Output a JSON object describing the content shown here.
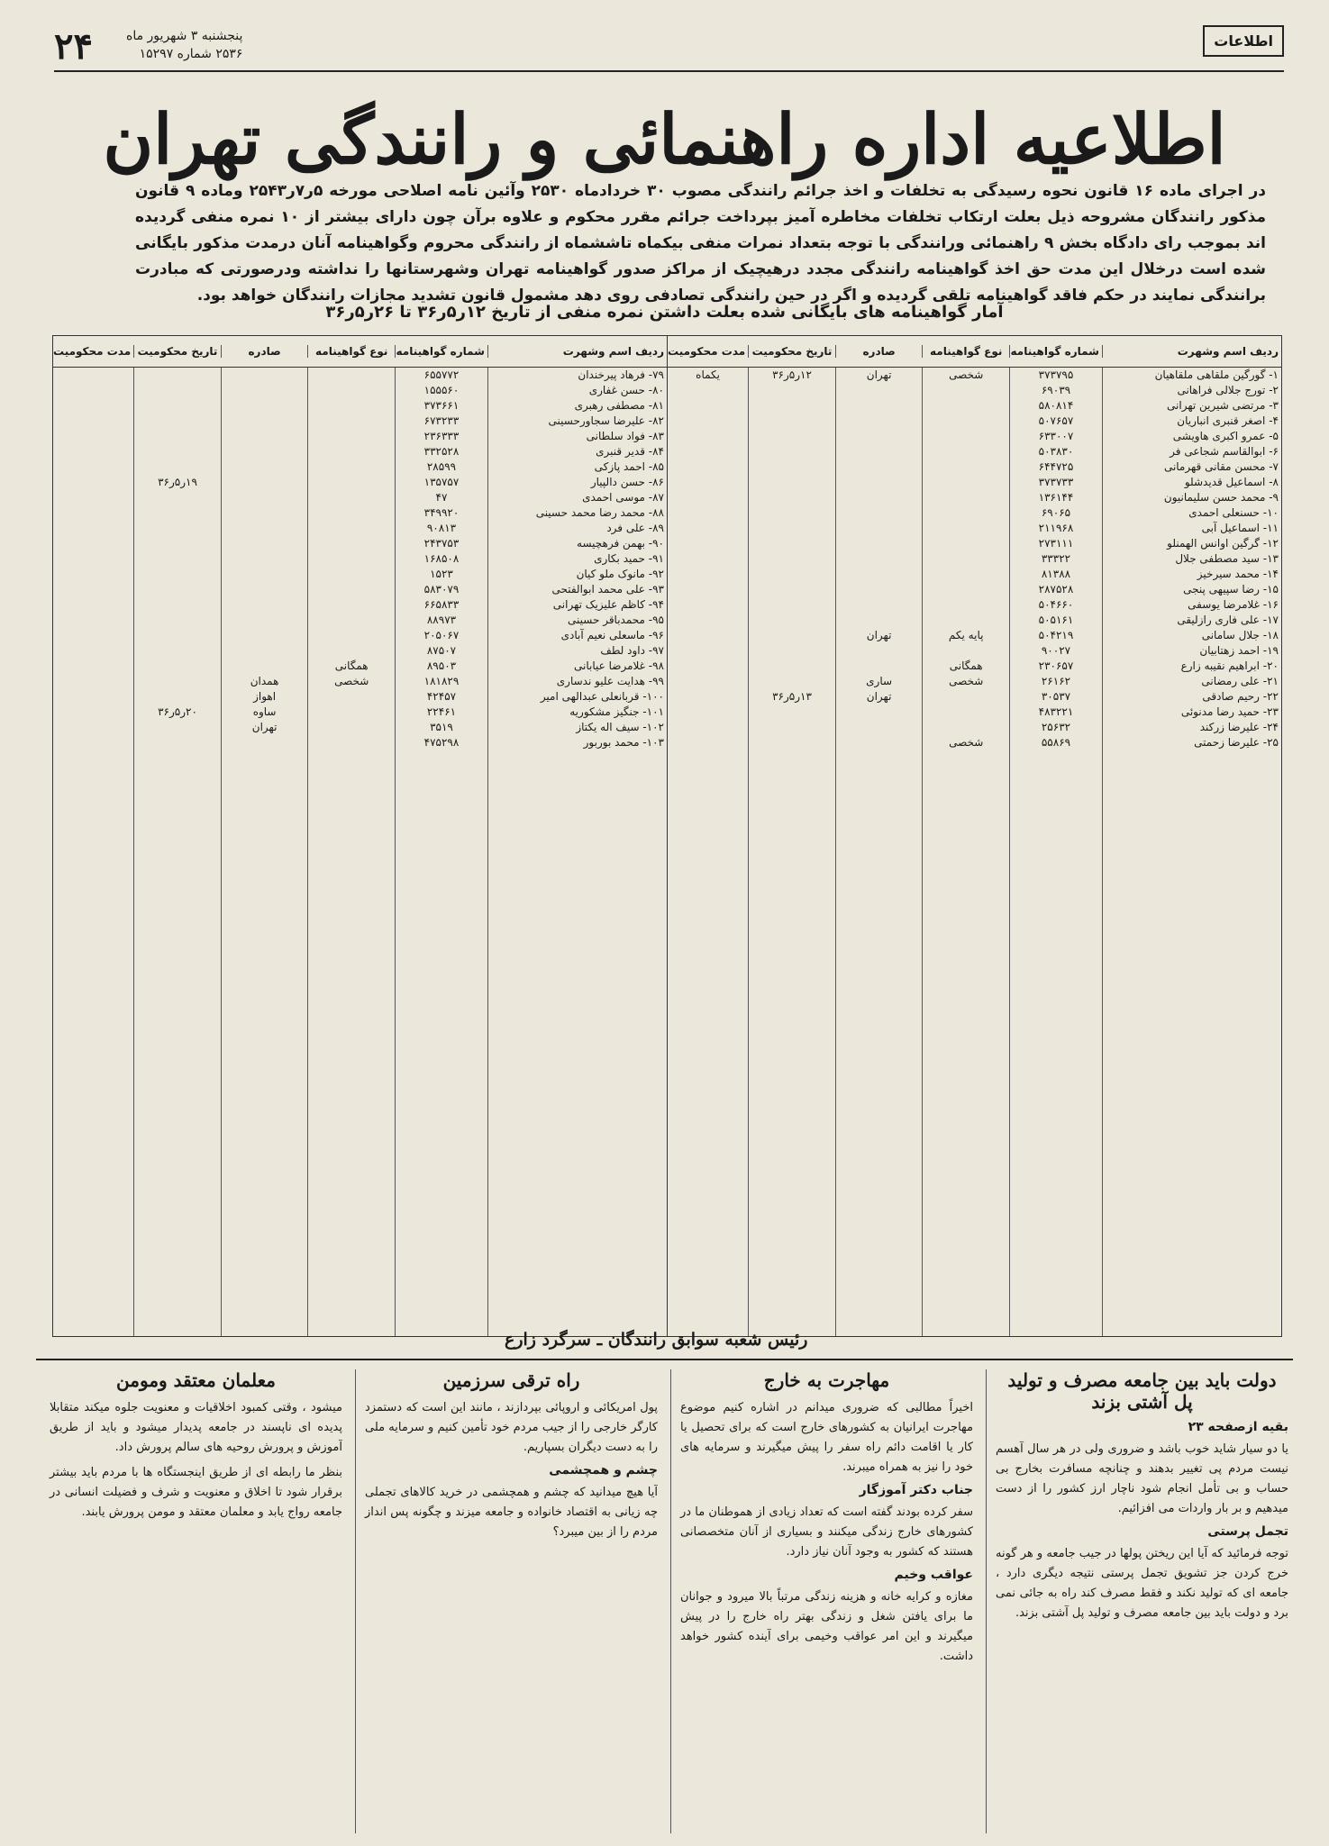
{
  "header": {
    "page_number": "۲۴",
    "date_line_1": "پنجشنبه ۳ شهریور ماه",
    "date_line_2": "۲۵۳۶ شماره ۱۵۲۹۷",
    "logo": "اطلاعات"
  },
  "notice": {
    "title": "اطلاعیه اداره راهنمائی و رانندگی تهران",
    "intro": "در اجرای ماده ۱۶ قانون نحوه رسیدگی به تخلفات و اخذ جرائم رانندگی مصوب ۳۰ خردادماه ۲۵۳۰ وآئین نامه اصلاحی مورخه ۵ر۷ر۲۵۴۳ وماده ۹ قانون مذکور رانندگان مشروحه ذیل بعلت ارتکاب تخلفات مخاطره آمیز بپرداخت جرائم مقرر محکوم و علاوه برآن چون دارای بیشتر از ۱۰ نمره منفی گردیده اند بموجب رای دادگاه بخش ۹ راهنمائی ورانندگی با توجه بتعداد نمرات منفی بیکماه تاششماه از رانندگی محروم وگواهینامه آنان درمدت مذکور بایگانی شده است درخلال این مدت حق اخذ گواهینامه رانندگی مجدد درهیچیک از مراکز صدور گواهینامه تهران وشهرستانها را نداشته ودرصورتی که مبادرت برانندگی نمایند در حکم فاقد گواهینامه تلقی گردیده و اگر در حین رانندگی تصادفی روی دهد مشمول قانون تشدید مجازات رانندگان خواهد بود.",
    "table_title": "آمار گواهینامه های بایگانی شده بعلت داشتن نمره منفی از تاریخ ۱۲ر۵ر۳۶ تا ۲۶ر۵ر۳۶",
    "signature": "رئیس شعبه سوابق رانندگان ـ سرگرد زارع"
  },
  "table": {
    "columns": [
      "ردیف اسم وشهرت",
      "شماره گواهینامه",
      "نوع گواهینامه",
      "صادره",
      "تاریخ محکومیت",
      "مدت محکومیت"
    ],
    "right_rows": [
      [
        "۱- گورگین ملقاهی ملقاهیان",
        "۳۷۳۷۹۵",
        "شخصی",
        "تهران",
        "۱۲ر۵ر۳۶",
        "یکماه"
      ],
      [
        "۲- تورج جلالی فراهانی",
        "۶۹۰۳۹",
        null,
        null,
        null,
        null
      ],
      [
        "۳- مرتضی شیرین تهرانی",
        "۵۸۰۸۱۴",
        null,
        null,
        null,
        null
      ],
      [
        "۴- اصغر قنبری انباریان",
        "۵۰۷۶۵۷",
        null,
        null,
        null,
        null
      ],
      [
        "۵- عمرو اکبری هاویشی",
        "۶۳۳۰۰۷",
        null,
        null,
        null,
        null
      ],
      [
        "۶- ابوالقاسم شجاعی فر",
        "۵۰۳۸۳۰",
        null,
        null,
        null,
        null
      ],
      [
        "۷- محسن مقانی قهرمانی",
        "۶۴۴۷۲۵",
        null,
        null,
        null,
        null
      ],
      [
        "۸- اسماعیل قدیدشلو",
        "۳۷۳۷۳۳",
        null,
        null,
        null,
        null
      ],
      [
        "۹- محمد حسن سلیمانیون",
        "۱۳۶۱۴۴",
        null,
        null,
        null,
        null
      ],
      [
        "۱۰- حسنعلی احمدی",
        "۶۹۰۶۵",
        null,
        null,
        null,
        null
      ],
      [
        "۱۱- اسماعیل آبی",
        "۲۱۱۹۶۸",
        null,
        null,
        null,
        null
      ],
      [
        "۱۲- گرگین اوانس الهمنلو",
        "۲۷۳۱۱۱",
        null,
        null,
        null,
        null
      ],
      [
        "۱۳- سید مصطفی جلال",
        "۳۳۳۲۲",
        null,
        null,
        null,
        null
      ],
      [
        "۱۴- محمد سیرخیز",
        "۸۱۳۸۸",
        null,
        null,
        null,
        null
      ],
      [
        "۱۵- رضا سپیهی پنجی",
        "۲۸۷۵۲۸",
        null,
        null,
        null,
        null
      ],
      [
        "۱۶- غلامرضا یوسفی",
        "۵۰۴۶۶۰",
        null,
        null,
        null,
        null
      ],
      [
        "۱۷- علی فاری رازلیقی",
        "۵۰۵۱۶۱",
        null,
        null,
        null,
        null
      ],
      [
        "۱۸- جلال سامانی",
        "۵۰۴۲۱۹",
        "پایه یکم",
        "تهران",
        null,
        null
      ],
      [
        "۱۹- احمد زهتابیان",
        "۹۰۰۲۷",
        null,
        null,
        null,
        null
      ],
      [
        "۲۰- ابراهیم نقیبه زارع",
        "۲۳۰۶۵۷",
        "همگانی",
        null,
        null,
        null
      ],
      [
        "۲۱- علی رمضانی",
        "۲۶۱۶۲",
        "شخصی",
        "ساری",
        null,
        null
      ],
      [
        "۲۲- رحیم صادقی",
        "۳۰۵۳۷",
        null,
        "تهران",
        "۱۳ر۵ر۳۶",
        null
      ],
      [
        "۲۳- حمید رضا مدنوئی",
        "۴۸۳۲۲۱",
        null,
        null,
        null,
        null
      ],
      [
        "۲۴- علیرضا زرکند",
        "۲۵۶۳۲",
        null,
        null,
        null,
        null
      ],
      [
        "۲۵- علیرضا زحمتی",
        "۵۵۸۶۹",
        "شخصی",
        null,
        null,
        null
      ]
    ],
    "left_rows": [
      [
        "۷۹- فرهاد پیرخندان",
        "۶۵۵۷۷۲",
        null,
        null,
        null,
        null
      ],
      [
        "۸۰- حسن غفاری",
        "۱۵۵۵۶۰",
        null,
        null,
        null,
        null
      ],
      [
        "۸۱- مصطفی رهبری",
        "۳۷۳۶۶۱",
        null,
        null,
        null,
        null
      ],
      [
        "۸۲- علیرضا سجاورحسینی",
        "۶۷۳۲۳۳",
        null,
        null,
        null,
        null
      ],
      [
        "۸۳- فواد سلطانی",
        "۲۳۶۳۳۳",
        null,
        null,
        null,
        null
      ],
      [
        "۸۴- قدیر قنبری",
        "۳۳۲۵۲۸",
        null,
        null,
        null,
        null
      ],
      [
        "۸۵- احمد پازکی",
        "۲۸۵۹۹",
        null,
        null,
        null,
        null
      ],
      [
        "۸۶- حسن دالپیار",
        "۱۳۵۷۵۷",
        null,
        null,
        "۱۹ر۵ر۳۶",
        null
      ],
      [
        "۸۷- موسی احمدی",
        "۴۷",
        null,
        null,
        null,
        null
      ],
      [
        "۸۸- محمد رضا محمد حسینی",
        "۳۴۹۹۲۰",
        null,
        null,
        null,
        null
      ],
      [
        "۸۹- علی فرد",
        "۹۰۸۱۳",
        null,
        null,
        null,
        null
      ],
      [
        "۹۰- بهمن فرهچیسه",
        "۲۴۳۷۵۳",
        null,
        null,
        null,
        null
      ],
      [
        "۹۱- حمید بکاری",
        "۱۶۸۵۰۸",
        null,
        null,
        null,
        null
      ],
      [
        "۹۲- مانوک ملو کیان",
        "۱۵۲۳",
        null,
        null,
        null,
        null
      ],
      [
        "۹۳- علی محمد ابوالفتحی",
        "۵۸۳۰۷۹",
        null,
        null,
        null,
        null
      ],
      [
        "۹۴- کاظم علیزیک تهرانی",
        "۶۶۵۸۳۳",
        null,
        null,
        null,
        null
      ],
      [
        "۹۵- محمدباقر حسینی",
        "۸۸۹۷۳",
        null,
        null,
        null,
        null
      ],
      [
        "۹۶- ماسعلی نعیم آبادی",
        "۲۰۵۰۶۷",
        null,
        null,
        null,
        null
      ],
      [
        "۹۷- داود لطف",
        "۸۷۵۰۷",
        null,
        null,
        null,
        null
      ],
      [
        "۹۸- غلامرضا عیابانی",
        "۸۹۵۰۳",
        "همگانی",
        null,
        null,
        null
      ],
      [
        "۹۹- هدایت علیو ندساری",
        "۱۸۱۸۲۹",
        "شخصی",
        "همدان",
        null,
        null
      ],
      [
        "۱۰۰- قربانعلی عبدالهی امیر",
        "۴۲۴۵۷",
        null,
        "اهواز",
        null,
        null
      ],
      [
        "۱۰۱- جنگیز مشکوریه",
        "۲۲۴۶۱",
        null,
        "ساوه",
        "۲۰ر۵ر۳۶",
        null
      ],
      [
        "۱۰۲- سیف اله یکتاز",
        "۳۵۱۹",
        null,
        "تهران",
        null,
        null
      ],
      [
        "۱۰۳- محمد بوربور",
        "۴۷۵۲۹۸",
        null,
        null,
        null,
        null
      ]
    ]
  },
  "articles": [
    {
      "title": "دولت باید بین جامعه مصرف و تولید پل آشتی بزند",
      "blocks": [
        {
          "h": "بقیه ازصفحه ۲۳"
        },
        {
          "p": "یا دو سیار شاید خوب باشد و ضروری ولی در هر سال آهسم نیست مردم پی تغییر بدهند و چنانچه مسافرت بخارج بی حساب و بی تأمل انجام شود ناچار ارز کشور را از دست میدهیم و بر بار واردات می افزائیم."
        },
        {
          "h": "تجمل پرستی"
        },
        {
          "p": "توجه فرمائید که آیا این ریختن پولها در جیب جامعه و هر گونه خرج کردن جز تشویق تجمل پرستی نتیجه دیگری دارد ، جامعه ای که تولید نکند و فقط مصرف کند راه به جائی نمی برد و دولت باید بین جامعه مصرف و تولید پل آشتی بزند."
        }
      ]
    },
    {
      "title": "مهاجرت به خارج",
      "blocks": [
        {
          "p": "اخیراً مطالبی که ضروری میدانم در اشاره کنیم موضوع مهاجرت ایرانیان به کشورهای خارج است که برای تحصیل یا کار یا اقامت دائم راه سفر را پیش میگیرند و سرمایه های خود را نیز به همراه میبرند."
        },
        {
          "h": "جناب دکتر آموزگار"
        },
        {
          "p": "سفر کرده بودند گفته است که تعداد زیادی از هموطنان ما در کشورهای خارج زندگی میکنند و بسیاری از آنان متخصصانی هستند که کشور به وجود آنان نیاز دارد."
        },
        {
          "h": "عواقب وخیم"
        },
        {
          "p": "مغازه و کرایه خانه و هزینه زندگی مرتباً بالا میرود و جوانان ما برای یافتن شغل و زندگی بهتر راه خارج را در پیش میگیرند و این امر عواقب وخیمی برای آینده کشور خواهد داشت."
        }
      ]
    },
    {
      "title": "راه ترقی سرزمین",
      "blocks": [
        {
          "p": "پول امریکائی و اروپائی بپردازند ، مانند این است که دستمزد کارگر خارجی را از جیب مردم خود تأمین کنیم و سرمایه ملی را به دست دیگران بسپاریم."
        },
        {
          "h": "چشم و همچشمی"
        },
        {
          "p": "آیا هیچ میدانید که چشم و همچشمی در خرید کالاهای تجملی چه زیانی به اقتصاد خانواده و جامعه میزند و چگونه پس انداز مردم را از بین میبرد؟"
        }
      ]
    },
    {
      "title": "معلمان معتقد ومومن",
      "blocks": [
        {
          "p": "میشود ، وقتی کمبود اخلاقیات و معنویت جلوه میکند متقابلا پدیده ای ناپسند در جامعه پدیدار میشود و باید از طریق آموزش و پرورش روحیه های سالم پرورش داد."
        },
        {
          "p": "بنظر ما رابطه ای از طریق اینجستگاه ها با مردم باید بیشتر برقرار شود تا اخلاق و معنویت و شرف و فضیلت انسانی در جامعه رواج یابد و معلمان معتقد و مومن پرورش یابند."
        }
      ]
    }
  ]
}
